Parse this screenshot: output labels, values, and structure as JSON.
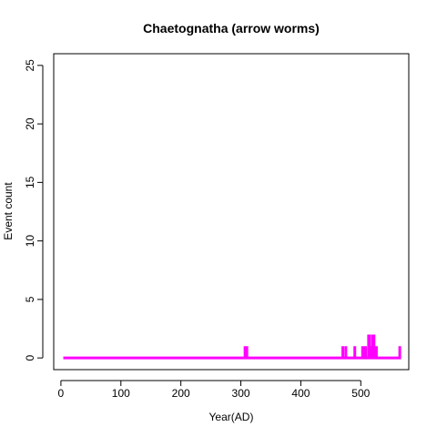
{
  "chart_data": {
    "type": "line",
    "title": "Chaetognatha (arrow worms)",
    "xlabel": "Year(AD)",
    "ylabel": "Event count",
    "xlim": [
      -12,
      580
    ],
    "ylim": [
      -1,
      26
    ],
    "x_ticks": [
      0,
      100,
      200,
      300,
      400,
      500
    ],
    "y_ticks": [
      0,
      5,
      10,
      15,
      20,
      25
    ],
    "grid": false,
    "legend": "none",
    "series_color": "#ff00ff",
    "series": [
      {
        "x": [
          4,
          307,
          307,
          307,
          309,
          309,
          309,
          310,
          310,
          310,
          470,
          470,
          470,
          475,
          475,
          475,
          490,
          490,
          490,
          503,
          503,
          503,
          505,
          505,
          505,
          508,
          508,
          508,
          513,
          513,
          513,
          515,
          515,
          515,
          518,
          518,
          518,
          520,
          520,
          520,
          522,
          522,
          522,
          526,
          526,
          526,
          565,
          565,
          565
        ],
        "y": [
          0,
          0,
          1,
          0,
          0,
          1,
          0,
          0,
          1,
          0,
          0,
          1,
          0,
          0,
          1,
          0,
          0,
          1,
          0,
          0,
          1,
          0,
          0,
          1,
          0,
          0,
          1,
          0,
          0,
          2,
          0,
          0,
          2,
          0,
          0,
          1,
          0,
          0,
          2,
          0,
          0,
          2,
          0,
          0,
          1,
          0,
          0,
          1,
          0
        ]
      }
    ]
  }
}
